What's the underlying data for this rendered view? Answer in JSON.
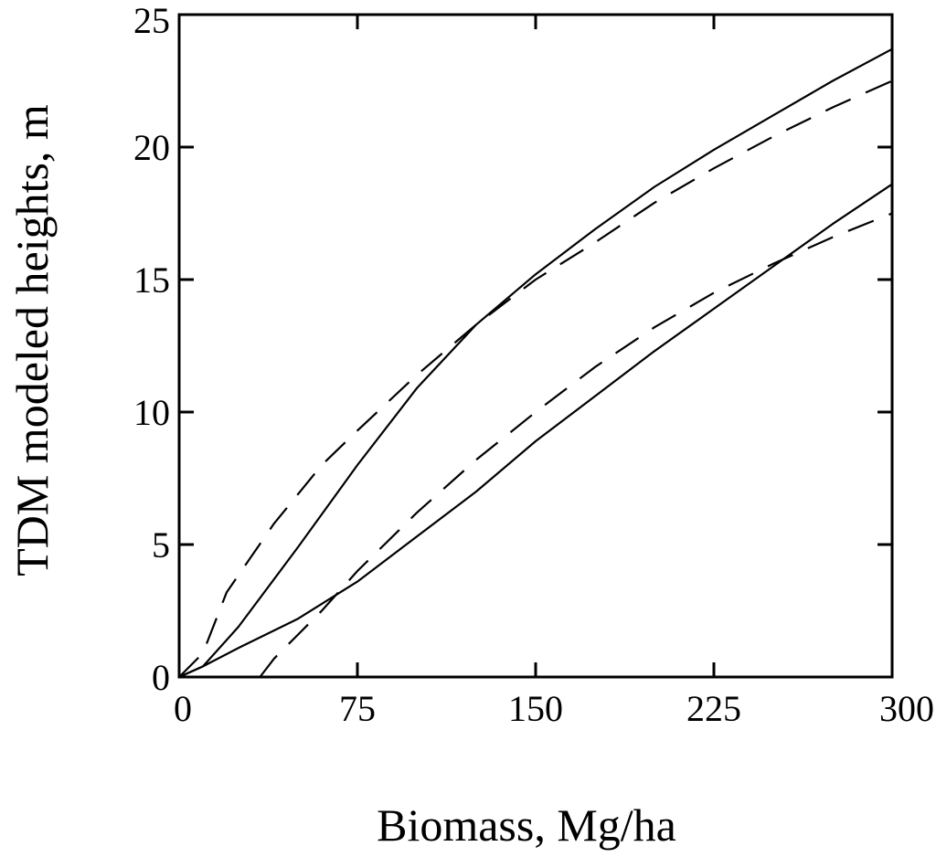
{
  "chart_data": {
    "type": "line",
    "title": "",
    "xlabel": "Biomass, Mg/ha",
    "ylabel": "TDM modeled heights, m",
    "xlim": [
      0,
      300
    ],
    "ylim": [
      0,
      25
    ],
    "x_ticks": [
      "0",
      "75",
      "150",
      "225",
      "300"
    ],
    "y_ticks": [
      "0",
      "5",
      "10",
      "15",
      "20",
      "25"
    ],
    "grid": false,
    "legend": "none",
    "colors": {
      "line": "#000000",
      "axis": "#000000"
    },
    "series": [
      {
        "style": "solid",
        "x": [
          0,
          10,
          25,
          50,
          75,
          100,
          125,
          150,
          175,
          200,
          225,
          250,
          275,
          300
        ],
        "y": [
          0,
          0.4,
          1.9,
          4.9,
          8.0,
          10.9,
          13.3,
          15.2,
          16.9,
          18.5,
          19.9,
          21.2,
          22.5,
          23.7
        ]
      },
      {
        "style": "dashed",
        "x": [
          0,
          10,
          20,
          40,
          60,
          75,
          100,
          125,
          150,
          175,
          200,
          225,
          250,
          275,
          300
        ],
        "y": [
          0,
          0.9,
          3.2,
          5.8,
          8.0,
          9.3,
          11.4,
          13.3,
          15.0,
          16.4,
          17.9,
          19.2,
          20.4,
          21.5,
          22.5
        ]
      },
      {
        "style": "solid",
        "x": [
          0,
          10,
          25,
          50,
          75,
          100,
          125,
          150,
          175,
          200,
          225,
          250,
          275,
          300
        ],
        "y": [
          0,
          0.4,
          1.1,
          2.2,
          3.6,
          5.3,
          7.0,
          8.9,
          10.6,
          12.3,
          13.9,
          15.5,
          17.1,
          18.6
        ]
      },
      {
        "style": "dashed",
        "x": [
          34,
          40,
          50,
          60,
          75,
          100,
          125,
          150,
          175,
          200,
          225,
          250,
          275,
          300
        ],
        "y": [
          0,
          0.7,
          1.6,
          2.5,
          4.0,
          6.2,
          8.2,
          10.0,
          11.7,
          13.2,
          14.5,
          15.6,
          16.6,
          17.5
        ]
      }
    ]
  }
}
